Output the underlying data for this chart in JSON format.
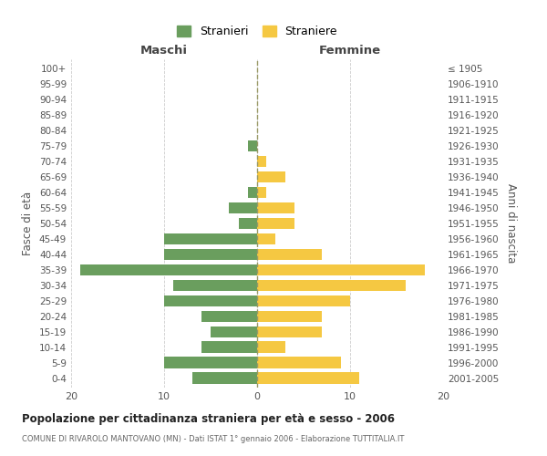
{
  "age_groups": [
    "100+",
    "95-99",
    "90-94",
    "85-89",
    "80-84",
    "75-79",
    "70-74",
    "65-69",
    "60-64",
    "55-59",
    "50-54",
    "45-49",
    "40-44",
    "35-39",
    "30-34",
    "25-29",
    "20-24",
    "15-19",
    "10-14",
    "5-9",
    "0-4"
  ],
  "birth_years": [
    "≤ 1905",
    "1906-1910",
    "1911-1915",
    "1916-1920",
    "1921-1925",
    "1926-1930",
    "1931-1935",
    "1936-1940",
    "1941-1945",
    "1946-1950",
    "1951-1955",
    "1956-1960",
    "1961-1965",
    "1966-1970",
    "1971-1975",
    "1976-1980",
    "1981-1985",
    "1986-1990",
    "1991-1995",
    "1996-2000",
    "2001-2005"
  ],
  "maschi": [
    0,
    0,
    0,
    0,
    0,
    1,
    0,
    0,
    1,
    3,
    2,
    10,
    10,
    19,
    9,
    10,
    6,
    5,
    6,
    10,
    7
  ],
  "femmine": [
    0,
    0,
    0,
    0,
    0,
    0,
    1,
    3,
    1,
    4,
    4,
    2,
    7,
    18,
    16,
    10,
    7,
    7,
    3,
    9,
    11
  ],
  "male_color": "#6a9e5e",
  "female_color": "#f5c842",
  "title": "Popolazione per cittadinanza straniera per età e sesso - 2006",
  "subtitle": "COMUNE DI RIVAROLO MANTOVANO (MN) - Dati ISTAT 1° gennaio 2006 - Elaborazione TUTTITALIA.IT",
  "xlabel_left": "Maschi",
  "xlabel_right": "Femmine",
  "ylabel_left": "Fasce di età",
  "ylabel_right": "Anni di nascita",
  "legend_male": "Stranieri",
  "legend_female": "Straniere",
  "xlim": 20,
  "grid_color": "#cccccc",
  "bar_height": 0.75
}
